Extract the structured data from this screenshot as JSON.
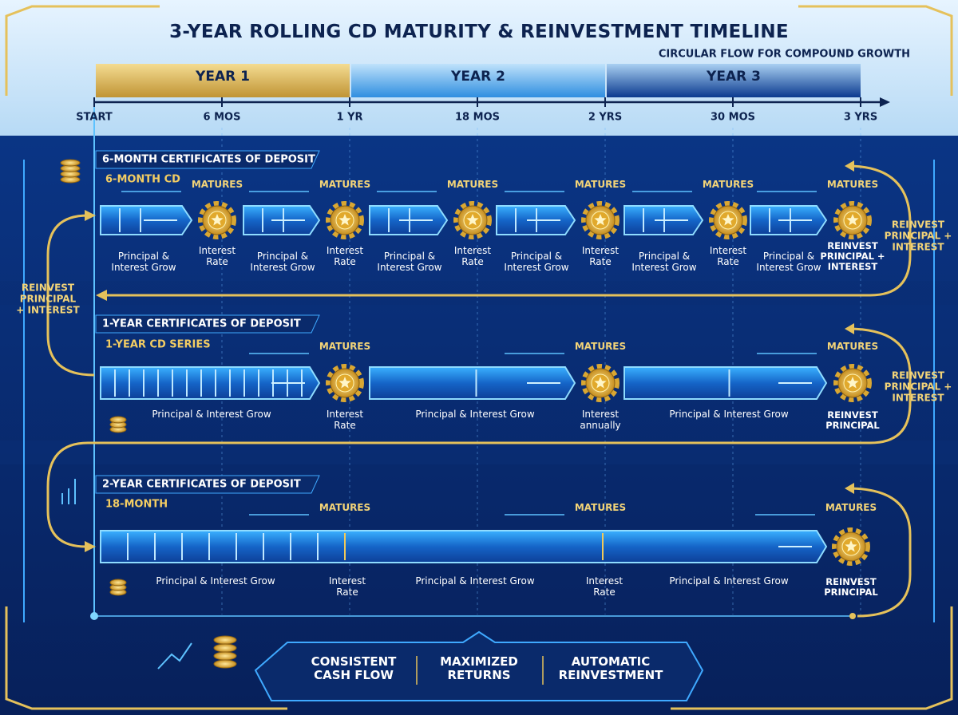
{
  "header": {
    "title": "3-YEAR ROLLING CD MATURITY & REINVESTMENT TIMELINE",
    "subtitle": "CIRCULAR FLOW FOR COMPOUND GROWTH"
  },
  "years": [
    "YEAR 1",
    "YEAR 2",
    "YEAR 3"
  ],
  "timeline": [
    "START",
    "6 MOS",
    "1 YR",
    "18 MOS",
    "2 YRS",
    "30 MOS",
    "3 YRS"
  ],
  "rows": [
    {
      "title": "6-MONTH CERTIFICATES OF DEPOSIT",
      "series": "6-MONTH CD",
      "matures": [
        "MATURES",
        "MATURES",
        "MATURES",
        "MATURES",
        "MATURES",
        "MATURES"
      ],
      "growth_labels": [
        "Principal & Interest Grow",
        "Principal & Interest Grow",
        "Principal & Interest Grow",
        "Principal & Interest Grow",
        "Principal & Interest Grow",
        "Principal & Interest Grow"
      ],
      "gear_labels": [
        "Interest Rate",
        "Interest Rate",
        "Interest Rate",
        "Interest Rate",
        "Interest Rate",
        "REINVEST PRINCIPAL + INTEREST"
      ]
    },
    {
      "title": "1-YEAR CERTIFICATES OF DEPOSIT",
      "series": "1-YEAR CD SERIES",
      "matures": [
        "MATURES",
        "MATURES",
        "MATURES"
      ],
      "growth_labels": [
        "Principal & Interest Grow",
        "Principal & Interest Grow",
        "Principal & Interest Grow"
      ],
      "gear_labels": [
        "Interest Rate",
        "Interest annually",
        "REINVEST PRINCIPAL"
      ]
    },
    {
      "title": "2-YEAR CERTIFICATES OF DEPOSIT",
      "series": "18-MONTH",
      "matures": [
        "MATURES",
        "MATURES",
        "MATURES"
      ],
      "growth_labels": [
        "Principal & Interest Grow",
        "Principal & Interest Grow",
        "Principal & Interest Grow"
      ],
      "gear_labels": [
        "Interest Rate",
        "Interest Rate",
        "REINVEST PRINCIPAL"
      ]
    }
  ],
  "side_labels": [
    "REINVEST PRINCIPAL + INTEREST",
    "REINVEST PRINCIPAL + INTEREST",
    "REINVEST PRINCIPAL + INTEREST"
  ],
  "footer": [
    "CONSISTENT CASH FLOW",
    "MAXIMIZED RETURNS",
    "AUTOMATIC REINVESTMENT"
  ]
}
